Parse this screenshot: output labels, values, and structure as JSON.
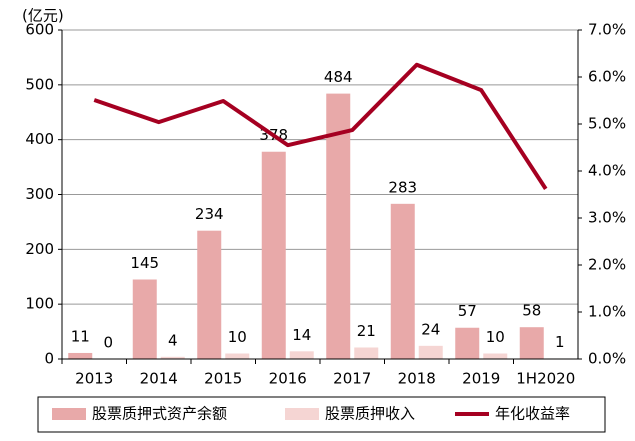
{
  "chart_data": {
    "type": "bar",
    "y_axis_label": "(亿元)",
    "categories": [
      "2013",
      "2014",
      "2015",
      "2016",
      "2017",
      "2018",
      "2019",
      "1H2020"
    ],
    "series": [
      {
        "name": "股票质押式资产余额",
        "color": "#e8a9a9",
        "values": [
          11,
          145,
          234,
          378,
          484,
          283,
          57,
          58
        ]
      },
      {
        "name": "股票质押收入",
        "color": "#f5d5d3",
        "values": [
          0,
          4,
          10,
          14,
          21,
          24,
          10,
          1
        ]
      },
      {
        "name": "年化收益率",
        "color": "#a50021",
        "type": "line",
        "axis": "y2",
        "values": [
          5.51,
          5.04,
          5.49,
          4.55,
          4.87,
          6.26,
          5.72,
          3.62
        ]
      }
    ],
    "ylim": [
      0,
      600
    ],
    "yticks": [
      0,
      100,
      200,
      300,
      400,
      500,
      600
    ],
    "y2lim": [
      0,
      7
    ],
    "y2ticks": [
      {
        "value": 0,
        "label": "0.0%"
      },
      {
        "value": 1,
        "label": "1.0%"
      },
      {
        "value": 2,
        "label": "2.0%"
      },
      {
        "value": 3,
        "label": "3.0%"
      },
      {
        "value": 4,
        "label": "4.0%"
      },
      {
        "value": 5,
        "label": "5.0%"
      },
      {
        "value": 6,
        "label": "6.0%"
      },
      {
        "value": 7,
        "label": "7.0%"
      }
    ],
    "grid": true,
    "legend": "bottom"
  }
}
